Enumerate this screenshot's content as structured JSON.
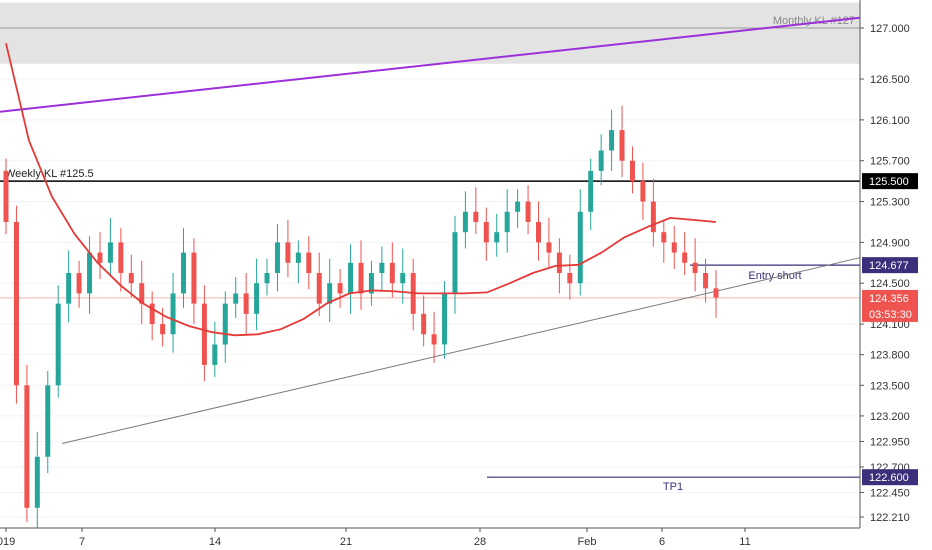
{
  "chart_data": {
    "type": "candlestick",
    "title": "",
    "y_axis": {
      "ticks": [
        "127.000",
        "126.500",
        "126.100",
        "125.700",
        "125.300",
        "124.900",
        "124.500",
        "124.100",
        "123.800",
        "123.500",
        "123.200",
        "122.950",
        "122.700",
        "122.450",
        "122.210"
      ],
      "range": [
        122.05,
        127.3
      ]
    },
    "x_axis": {
      "ticks": [
        "019",
        "7",
        "14",
        "21",
        "28",
        "Feb",
        "6",
        "11"
      ]
    },
    "levels": [
      {
        "name": "Monthly KL #127",
        "value": 127.0,
        "zone": [
          126.65,
          127.25
        ]
      },
      {
        "name": "Weekly KL #125.5",
        "value": 125.5,
        "badge": "125.500"
      },
      {
        "name": "Entry short",
        "value": 124.677,
        "badge": "124.677"
      },
      {
        "name": "TP1",
        "value": 122.6,
        "badge": "122.600"
      }
    ],
    "current_price": {
      "value": 124.356,
      "badge": "124.356",
      "countdown": "03:53:30"
    },
    "trendlines": [
      {
        "from": [
          0,
          126.18
        ],
        "to": [
          1,
          127.1
        ],
        "color": "#9b30d9"
      },
      {
        "from": [
          0.07,
          122.93
        ],
        "to": [
          1,
          124.75
        ],
        "color": "#787878"
      }
    ],
    "moving_average": [
      126.85,
      125.9,
      125.35,
      124.98,
      124.7,
      124.48,
      124.3,
      124.17,
      124.08,
      124.02,
      123.99,
      124.0,
      124.05,
      124.15,
      124.3,
      124.4,
      124.43,
      124.42,
      124.4,
      124.4,
      124.4,
      124.41,
      124.5,
      124.6,
      124.67,
      124.68,
      124.8,
      124.95,
      125.05,
      125.14,
      125.12,
      125.1
    ],
    "candles_close": [
      125.1,
      123.5,
      122.3,
      122.8,
      123.5,
      124.3,
      124.6,
      124.4,
      124.8,
      124.7,
      124.9,
      124.6,
      124.5,
      124.3,
      124.1,
      124.0,
      124.4,
      124.8,
      124.3,
      123.7,
      123.9,
      124.3,
      124.4,
      124.2,
      124.5,
      124.6,
      124.9,
      124.7,
      124.8,
      124.6,
      124.3,
      124.5,
      124.4,
      124.7,
      124.4,
      124.6,
      124.7,
      124.5,
      124.6,
      124.2,
      124.0,
      123.9,
      124.4,
      125.0,
      125.2,
      125.1,
      124.9,
      125.0,
      125.2,
      125.3,
      125.1,
      124.9,
      124.8,
      124.6,
      124.5,
      125.2,
      125.6,
      125.8,
      126.0,
      125.7,
      125.5,
      125.3,
      125.0,
      124.9,
      124.8,
      124.7,
      124.6,
      124.45,
      124.36
    ]
  },
  "labels": {
    "monthly": "Monthly KL #127",
    "weekly": "Weekly KL #125.5",
    "entry": "Entry short",
    "tp": "TP1"
  }
}
